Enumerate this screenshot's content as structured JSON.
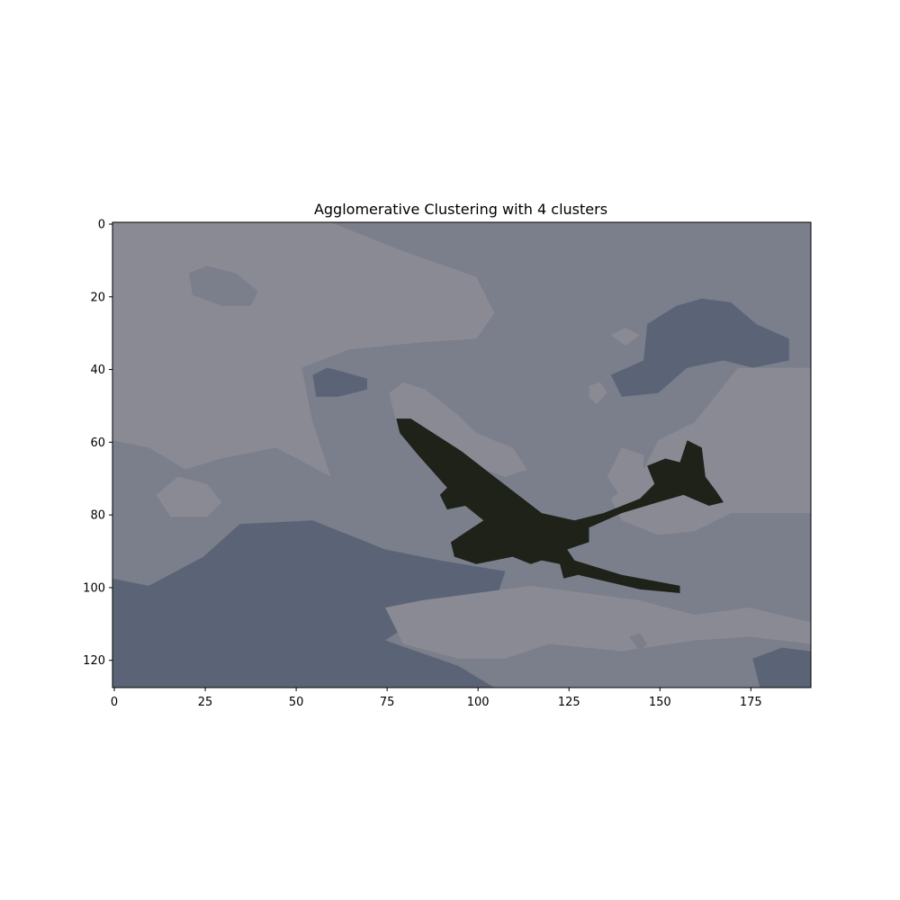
{
  "chart_data": {
    "type": "heatmap",
    "title": "Agglomerative Clustering with 4 clusters",
    "xlabel": "",
    "ylabel": "",
    "image_size": {
      "width": 192,
      "height": 128
    },
    "xlim": [
      -0.5,
      191.5
    ],
    "ylim": [
      127.5,
      -0.5
    ],
    "x_ticks": [
      0,
      25,
      50,
      75,
      100,
      125,
      150,
      175
    ],
    "y_ticks": [
      0,
      20,
      40,
      60,
      80,
      100,
      120
    ],
    "grid": false,
    "clusters": [
      {
        "id": 0,
        "color": "#8a8a94"
      },
      {
        "id": 1,
        "color": "#7b7f8b"
      },
      {
        "id": 2,
        "color": "#5b6476"
      },
      {
        "id": 3,
        "color": "#1e2219"
      }
    ],
    "regions": [
      {
        "cluster": 1,
        "note": "upper-right sky band",
        "outline": [
          [
            60,
            0
          ],
          [
            192,
            0
          ],
          [
            192,
            128
          ],
          [
            105,
            128
          ],
          [
            105,
            100
          ],
          [
            130,
            100
          ],
          [
            192,
            80
          ],
          [
            192,
            40
          ],
          [
            160,
            30
          ],
          [
            140,
            40
          ],
          [
            120,
            50
          ],
          [
            100,
            45
          ],
          [
            90,
            40
          ],
          [
            80,
            20
          ]
        ]
      },
      {
        "cluster": 0,
        "note": "upper-left bright cloud",
        "outline": [
          [
            0,
            0
          ],
          [
            60,
            0
          ],
          [
            80,
            8
          ],
          [
            100,
            15
          ],
          [
            105,
            25
          ],
          [
            100,
            32
          ],
          [
            85,
            33
          ],
          [
            65,
            35
          ],
          [
            52,
            40
          ],
          [
            55,
            55
          ],
          [
            60,
            70
          ],
          [
            45,
            62
          ],
          [
            30,
            65
          ],
          [
            20,
            68
          ],
          [
            10,
            62
          ],
          [
            0,
            60
          ]
        ]
      },
      {
        "cluster": 1,
        "note": "left mid band",
        "outline": [
          [
            0,
            60
          ],
          [
            10,
            62
          ],
          [
            20,
            68
          ],
          [
            30,
            65
          ],
          [
            45,
            62
          ],
          [
            60,
            70
          ],
          [
            70,
            78
          ],
          [
            90,
            80
          ],
          [
            100,
            85
          ],
          [
            90,
            93
          ],
          [
            75,
            90
          ],
          [
            55,
            82
          ],
          [
            35,
            83
          ],
          [
            25,
            92
          ],
          [
            10,
            100
          ],
          [
            0,
            98
          ]
        ]
      },
      {
        "cluster": 2,
        "note": "lower-left dark region",
        "outline": [
          [
            0,
            98
          ],
          [
            10,
            100
          ],
          [
            25,
            92
          ],
          [
            35,
            83
          ],
          [
            55,
            82
          ],
          [
            75,
            90
          ],
          [
            90,
            93
          ],
          [
            108,
            96
          ],
          [
            105,
            105
          ],
          [
            90,
            105
          ],
          [
            75,
            115
          ],
          [
            95,
            122
          ],
          [
            105,
            128
          ],
          [
            0,
            128
          ]
        ]
      },
      {
        "cluster": 0,
        "note": "right cloud",
        "outline": [
          [
            172,
            40
          ],
          [
            192,
            40
          ],
          [
            192,
            80
          ],
          [
            170,
            80
          ],
          [
            160,
            85
          ],
          [
            150,
            86
          ],
          [
            140,
            82
          ],
          [
            137,
            76
          ],
          [
            145,
            70
          ],
          [
            150,
            60
          ],
          [
            160,
            55
          ]
        ]
      },
      {
        "cluster": 0,
        "note": "lower center cloud",
        "outline": [
          [
            75,
            106
          ],
          [
            85,
            104
          ],
          [
            100,
            102
          ],
          [
            115,
            100
          ],
          [
            130,
            102
          ],
          [
            145,
            104
          ],
          [
            160,
            108
          ],
          [
            175,
            106
          ],
          [
            192,
            110
          ],
          [
            192,
            116
          ],
          [
            175,
            114
          ],
          [
            160,
            115
          ],
          [
            140,
            118
          ],
          [
            120,
            116
          ],
          [
            108,
            120
          ],
          [
            95,
            120
          ],
          [
            80,
            116
          ]
        ]
      },
      {
        "cluster": 0,
        "note": "small cloud left",
        "outline": [
          [
            12,
            75
          ],
          [
            18,
            70
          ],
          [
            26,
            72
          ],
          [
            30,
            77
          ],
          [
            26,
            81
          ],
          [
            16,
            81
          ]
        ]
      },
      {
        "cluster": 0,
        "note": "cloud near wing tip",
        "outline": [
          [
            76,
            47
          ],
          [
            80,
            44
          ],
          [
            86,
            46
          ],
          [
            95,
            53
          ],
          [
            100,
            58
          ],
          [
            110,
            62
          ],
          [
            114,
            68
          ],
          [
            108,
            70
          ],
          [
            96,
            66
          ],
          [
            86,
            60
          ],
          [
            78,
            55
          ]
        ]
      },
      {
        "cluster": 0,
        "note": "spot 1",
        "outline": [
          [
            137,
            31
          ],
          [
            141,
            29
          ],
          [
            145,
            31
          ],
          [
            141,
            34
          ]
        ]
      },
      {
        "cluster": 0,
        "note": "spot 2",
        "outline": [
          [
            131,
            45
          ],
          [
            134,
            44
          ],
          [
            136,
            47
          ],
          [
            133,
            50
          ],
          [
            131,
            48
          ]
        ]
      },
      {
        "cluster": 0,
        "note": "cloud right of fuselage",
        "outline": [
          [
            136,
            70
          ],
          [
            140,
            62
          ],
          [
            146,
            64
          ],
          [
            146,
            74
          ],
          [
            140,
            76
          ]
        ]
      },
      {
        "cluster": 2,
        "note": "upper-right dark patch",
        "outline": [
          [
            147,
            28
          ],
          [
            155,
            23
          ],
          [
            162,
            21
          ],
          [
            170,
            22
          ],
          [
            177,
            28
          ],
          [
            186,
            32
          ],
          [
            186,
            38
          ],
          [
            176,
            40
          ],
          [
            168,
            38
          ],
          [
            158,
            40
          ],
          [
            150,
            47
          ],
          [
            140,
            48
          ],
          [
            137,
            42
          ],
          [
            146,
            38
          ]
        ]
      },
      {
        "cluster": 1,
        "note": "upper-left gray patch",
        "outline": [
          [
            21,
            14
          ],
          [
            26,
            12
          ],
          [
            34,
            14
          ],
          [
            40,
            19
          ],
          [
            38,
            23
          ],
          [
            30,
            23
          ],
          [
            22,
            20
          ]
        ]
      },
      {
        "cluster": 2,
        "note": "small dark patch left",
        "outline": [
          [
            55,
            42
          ],
          [
            59,
            40
          ],
          [
            63,
            41
          ],
          [
            70,
            43
          ],
          [
            70,
            46
          ],
          [
            62,
            48
          ],
          [
            56,
            48
          ]
        ]
      },
      {
        "cluster": 2,
        "note": "small dark patch bottom right",
        "outline": [
          [
            176,
            120
          ],
          [
            184,
            117
          ],
          [
            192,
            118
          ],
          [
            192,
            128
          ],
          [
            178,
            128
          ]
        ]
      },
      {
        "cluster": 1,
        "note": "spot 3",
        "outline": [
          [
            142,
            114
          ],
          [
            145,
            113
          ],
          [
            147,
            116
          ],
          [
            145,
            118
          ]
        ]
      },
      {
        "cluster": 3,
        "note": "airplane silhouette",
        "outline": [
          [
            78,
            54
          ],
          [
            82,
            54
          ],
          [
            96,
            63
          ],
          [
            105,
            70
          ],
          [
            118,
            80
          ],
          [
            127,
            82
          ],
          [
            135,
            80
          ],
          [
            145,
            76
          ],
          [
            149,
            72
          ],
          [
            147,
            67
          ],
          [
            152,
            65
          ],
          [
            156,
            66
          ],
          [
            158,
            60
          ],
          [
            162,
            62
          ],
          [
            163,
            70
          ],
          [
            166,
            74
          ],
          [
            168,
            77
          ],
          [
            164,
            78
          ],
          [
            157,
            75
          ],
          [
            150,
            77
          ],
          [
            140,
            80
          ],
          [
            131,
            84
          ],
          [
            131,
            88
          ],
          [
            125,
            90
          ],
          [
            127,
            93
          ],
          [
            140,
            97
          ],
          [
            156,
            100
          ],
          [
            156,
            102
          ],
          [
            145,
            101
          ],
          [
            128,
            97
          ],
          [
            124,
            98
          ],
          [
            123,
            94
          ],
          [
            118,
            93
          ],
          [
            115,
            94
          ],
          [
            110,
            92
          ],
          [
            100,
            94
          ],
          [
            94,
            92
          ],
          [
            93,
            88
          ],
          [
            99,
            84
          ],
          [
            102,
            82
          ],
          [
            97,
            78
          ],
          [
            92,
            79
          ],
          [
            90,
            75
          ],
          [
            92,
            73
          ],
          [
            84,
            64
          ],
          [
            79,
            58
          ]
        ]
      }
    ]
  }
}
